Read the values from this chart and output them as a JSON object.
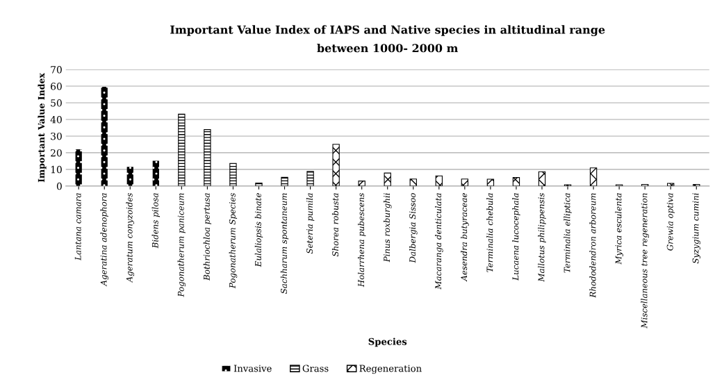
{
  "chart_data": {
    "type": "bar",
    "title": "Important Value Index of IAPS and Native species in altitudinal range\nbetween 1000- 2000 m",
    "xlabel": "Species",
    "ylabel": "Important Value Index",
    "categories": [
      "Lantana camara",
      "Ageratina adenophora",
      "Ageratum conyzoides",
      "Bidens pilosa",
      "Pogonatherum paniceum",
      "Bothriochloa pertusa",
      "Pogonatherum Species",
      "Eulaliopsis binate",
      "Sachharum spontaneum",
      "Seteria pumila",
      "Shorea robusta",
      "Holarrhena pubescens",
      "Pinus roxburghii",
      "Dalbergia Sissoo",
      "Macaranga denticulata",
      "Aesendra butyraceae",
      "Terminalia chebula",
      "Lucaena lucocephala",
      "Mallotus philippensis",
      "Terminalia elliptica",
      "Rhododendron arboreum",
      "Myrica esculenta",
      "Miscellaneous tree regeneration",
      "Grewia optiva",
      "Syzygium cumini"
    ],
    "series": [
      {
        "name": "Invasive",
        "color": "#000000",
        "values": [
          22.1,
          59.6,
          11.5,
          15.2,
          null,
          null,
          null,
          null,
          null,
          null,
          null,
          null,
          null,
          null,
          null,
          null,
          null,
          null,
          null,
          null,
          null,
          null,
          null,
          null,
          null
        ]
      },
      {
        "name": "Grass",
        "color": "#000000",
        "values": [
          null,
          null,
          null,
          null,
          43.2,
          33.9,
          13.6,
          1.8,
          5.2,
          8.8,
          null,
          null,
          null,
          null,
          null,
          null,
          null,
          null,
          null,
          null,
          null,
          null,
          null,
          null,
          null
        ]
      },
      {
        "name": "Regeneration",
        "color": "#000000",
        "values": [
          null,
          null,
          null,
          null,
          null,
          null,
          null,
          null,
          null,
          null,
          25.1,
          3.0,
          7.8,
          4.2,
          6.1,
          4.2,
          4.1,
          5.1,
          8.6,
          0.8,
          10.9,
          0.8,
          1.0,
          1.6,
          1.0
        ]
      }
    ],
    "ylim": [
      0,
      70
    ],
    "yticks": [
      0,
      10,
      20,
      30,
      40,
      50,
      60,
      70
    ],
    "grid": "y",
    "legend": "bottom"
  }
}
